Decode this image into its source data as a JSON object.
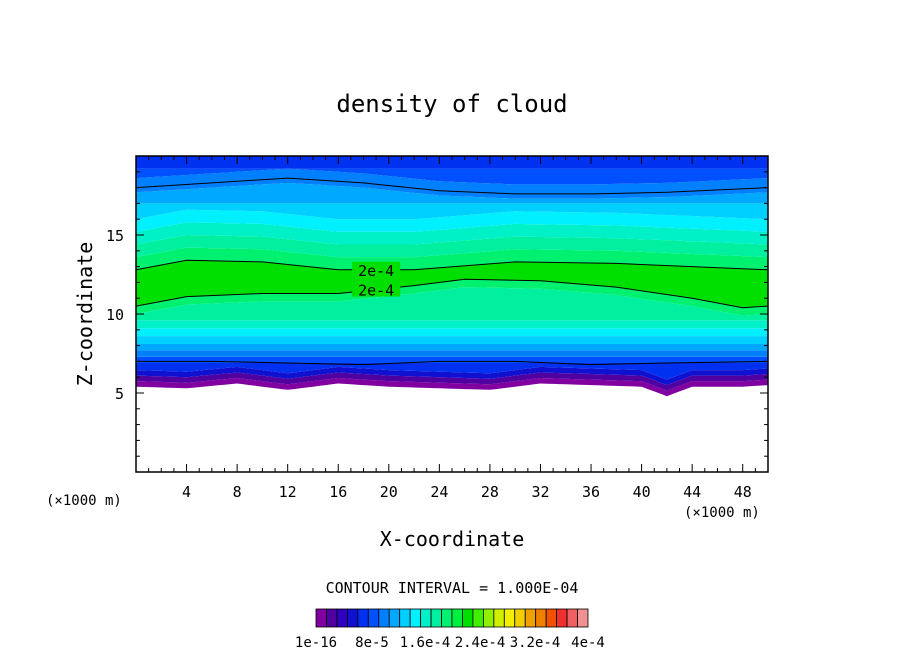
{
  "chart_data": {
    "type": "heatmap",
    "title": "density of cloud",
    "xlabel": "X-coordinate",
    "ylabel": "Z-coordinate",
    "x_unit": "(×1000 m)",
    "xlim": [
      0,
      50
    ],
    "ylim": [
      0,
      20
    ],
    "x_ticks": [
      4,
      8,
      12,
      16,
      20,
      24,
      28,
      32,
      36,
      40,
      44,
      48
    ],
    "y_ticks": [
      5,
      10,
      15
    ],
    "contour_interval_text": "CONTOUR INTERVAL = 1.000E-04",
    "contour_label": "2e-4",
    "contour_lines": [
      {
        "label": "",
        "points": [
          [
            0,
            18.0
          ],
          [
            6,
            18.3
          ],
          [
            12,
            18.6
          ],
          [
            18,
            18.3
          ],
          [
            24,
            17.8
          ],
          [
            30,
            17.6
          ],
          [
            36,
            17.6
          ],
          [
            42,
            17.7
          ],
          [
            50,
            18.0
          ]
        ]
      },
      {
        "label": "2e-4",
        "points": [
          [
            0,
            12.8
          ],
          [
            4,
            13.4
          ],
          [
            10,
            13.3
          ],
          [
            16,
            12.8
          ],
          [
            22,
            12.8
          ],
          [
            30,
            13.3
          ],
          [
            38,
            13.2
          ],
          [
            44,
            13.0
          ],
          [
            50,
            12.8
          ]
        ]
      },
      {
        "label": "2e-4",
        "points": [
          [
            0,
            10.5
          ],
          [
            4,
            11.1
          ],
          [
            10,
            11.3
          ],
          [
            16,
            11.3
          ],
          [
            22,
            11.8
          ],
          [
            26,
            12.2
          ],
          [
            32,
            12.1
          ],
          [
            38,
            11.7
          ],
          [
            44,
            11.0
          ],
          [
            48,
            10.4
          ],
          [
            50,
            10.5
          ]
        ]
      },
      {
        "label": "",
        "points": [
          [
            0,
            7.0
          ],
          [
            6,
            7.0
          ],
          [
            12,
            6.9
          ],
          [
            18,
            6.8
          ],
          [
            24,
            7.0
          ],
          [
            30,
            7.0
          ],
          [
            36,
            6.8
          ],
          [
            42,
            6.9
          ],
          [
            50,
            7.0
          ]
        ]
      }
    ],
    "cloud_base_profile": [
      [
        0,
        5.4
      ],
      [
        4,
        5.3
      ],
      [
        8,
        5.6
      ],
      [
        12,
        5.2
      ],
      [
        16,
        5.6
      ],
      [
        20,
        5.4
      ],
      [
        24,
        5.3
      ],
      [
        28,
        5.2
      ],
      [
        32,
        5.6
      ],
      [
        36,
        5.5
      ],
      [
        40,
        5.4
      ],
      [
        42,
        4.8
      ],
      [
        44,
        5.4
      ],
      [
        48,
        5.4
      ],
      [
        50,
        5.5
      ]
    ],
    "colorbar": {
      "colors": [
        "#8000a0",
        "#5000a0",
        "#3000c0",
        "#1010d0",
        "#0030f0",
        "#0050ff",
        "#0080ff",
        "#00a8ff",
        "#00d0ff",
        "#00f0ff",
        "#00f0c8",
        "#00f0a0",
        "#00f070",
        "#00f040",
        "#00e000",
        "#40f000",
        "#90f000",
        "#d0f000",
        "#f0f000",
        "#f0d000",
        "#f0a000",
        "#f08000",
        "#f05000",
        "#f03030",
        "#f06060",
        "#f09090"
      ],
      "tick_labels": [
        "1e-16",
        "8e-5",
        "1.6e-4",
        "2.4e-4",
        "3.2e-4",
        "4e-4"
      ]
    }
  }
}
